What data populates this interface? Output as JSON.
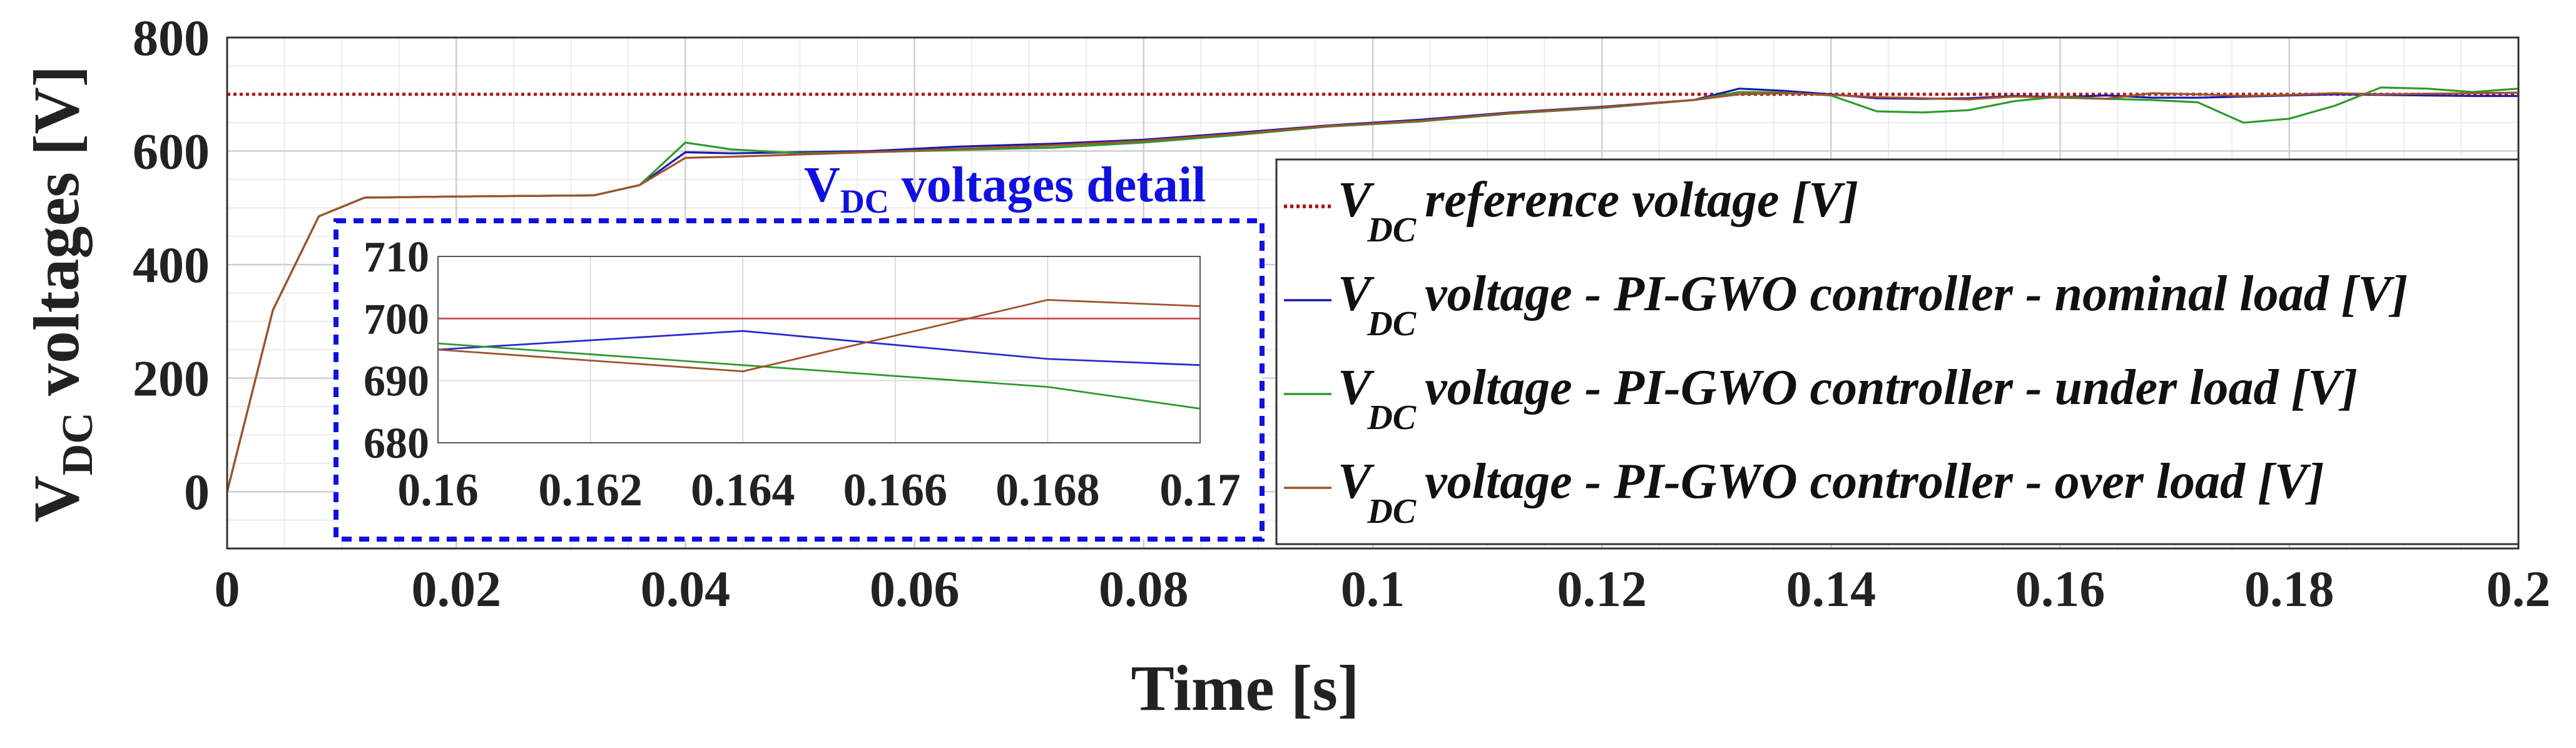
{
  "chart_data": [
    {
      "type": "line",
      "title": "",
      "xlabel": "Time [s]",
      "ylabel_main": "V",
      "ylabel_sub": "DC",
      "ylabel_rest": " voltages [V]",
      "xlim": [
        0,
        0.2
      ],
      "ylim": [
        -100,
        800
      ],
      "xticks": [
        0,
        0.02,
        0.04,
        0.06,
        0.08,
        0.1,
        0.12,
        0.14,
        0.16,
        0.18,
        0.2
      ],
      "xtick_labels": [
        "0",
        "0.02",
        "0.04",
        "0.06",
        "0.08",
        "0.1",
        "0.12",
        "0.14",
        "0.16",
        "0.18",
        "0.2"
      ],
      "yticks": [
        0,
        200,
        400,
        600,
        800
      ],
      "ytick_labels": [
        "0",
        "200",
        "400",
        "600",
        "800"
      ],
      "grid": true,
      "legend_position": "center-right",
      "series": [
        {
          "name": "V_DC reference voltage [V]",
          "legend_main": "V",
          "legend_sub": "DC",
          "legend_rest": "reference voltage [V]",
          "color": "#b01818",
          "dashed": true,
          "x": [
            0,
            0.2
          ],
          "y": [
            700,
            700
          ]
        },
        {
          "name": "V_DC voltage - PI-GWO controller - nominal load [V]",
          "legend_main": "V",
          "legend_sub": "DC",
          "legend_rest": "voltage - PI-GWO controller - nominal load  [V]",
          "color": "#1a1aa8",
          "dashed": false,
          "x": [
            0,
            0.004,
            0.008,
            0.012,
            0.02,
            0.032,
            0.036,
            0.04,
            0.044,
            0.05,
            0.056,
            0.064,
            0.072,
            0.08,
            0.088,
            0.096,
            0.104,
            0.112,
            0.12,
            0.128,
            0.132,
            0.136,
            0.14,
            0.144,
            0.148,
            0.152,
            0.156,
            0.16,
            0.164,
            0.168,
            0.172,
            0.176,
            0.18,
            0.184,
            0.188,
            0.192,
            0.196,
            0.2
          ],
          "y": [
            0,
            320,
            485,
            518,
            520,
            522,
            540,
            598,
            596,
            598,
            600,
            608,
            613,
            620,
            632,
            645,
            655,
            668,
            678,
            690,
            710,
            706,
            700,
            693,
            692,
            693,
            697,
            695,
            698,
            694,
            694,
            696,
            698,
            700,
            699,
            698,
            697,
            697
          ]
        },
        {
          "name": "V_DC voltage - PI-GWO controller - under load [V]",
          "legend_main": "V",
          "legend_sub": "DC",
          "legend_rest": "voltage - PI-GWO controller - under load  [V]",
          "color": "#2e9a2e",
          "dashed": false,
          "x": [
            0,
            0.004,
            0.008,
            0.012,
            0.02,
            0.032,
            0.036,
            0.04,
            0.044,
            0.05,
            0.056,
            0.064,
            0.072,
            0.08,
            0.088,
            0.096,
            0.104,
            0.112,
            0.12,
            0.128,
            0.132,
            0.136,
            0.14,
            0.144,
            0.148,
            0.152,
            0.156,
            0.16,
            0.164,
            0.168,
            0.172,
            0.176,
            0.18,
            0.184,
            0.188,
            0.192,
            0.196,
            0.2
          ],
          "y": [
            0,
            320,
            485,
            518,
            520,
            522,
            540,
            615,
            603,
            596,
            598,
            602,
            606,
            615,
            628,
            643,
            652,
            666,
            676,
            690,
            704,
            703,
            698,
            670,
            668,
            672,
            688,
            696,
            692,
            690,
            686,
            650,
            657,
            680,
            712,
            710,
            704,
            710
          ]
        },
        {
          "name": "V_DC voltage - PI-GWO controller - over load [V]",
          "legend_main": "V",
          "legend_sub": "DC",
          "legend_rest": "voltage - PI-GWO controller - over load  [V]",
          "color": "#a0522d",
          "dashed": false,
          "x": [
            0,
            0.004,
            0.008,
            0.012,
            0.02,
            0.032,
            0.036,
            0.04,
            0.044,
            0.05,
            0.056,
            0.064,
            0.072,
            0.08,
            0.088,
            0.096,
            0.104,
            0.112,
            0.12,
            0.128,
            0.132,
            0.136,
            0.14,
            0.144,
            0.148,
            0.152,
            0.156,
            0.16,
            0.164,
            0.168,
            0.172,
            0.176,
            0.18,
            0.184,
            0.188,
            0.192,
            0.196,
            0.2
          ],
          "y": [
            0,
            320,
            485,
            518,
            520,
            522,
            540,
            588,
            590,
            594,
            598,
            604,
            610,
            618,
            630,
            644,
            653,
            667,
            677,
            690,
            700,
            702,
            699,
            695,
            693,
            691,
            696,
            694,
            692,
            702,
            700,
            697,
            699,
            702,
            700,
            701,
            702,
            703
          ]
        }
      ]
    },
    {
      "type": "line",
      "title_main": "V",
      "title_sub": "DC",
      "title_rest": " voltages detail",
      "xlim": [
        0.16,
        0.17
      ],
      "ylim": [
        680,
        710
      ],
      "xticks": [
        0.16,
        0.162,
        0.164,
        0.166,
        0.168,
        0.17
      ],
      "xtick_labels": [
        "0.16",
        "0.162",
        "0.164",
        "0.166",
        "0.168",
        "0.17"
      ],
      "yticks": [
        680,
        690,
        700,
        710
      ],
      "ytick_labels": [
        "680",
        "690",
        "700",
        "710"
      ],
      "grid": true,
      "series": [
        {
          "name": "reference",
          "color": "#c85050",
          "x": [
            0.16,
            0.17
          ],
          "y": [
            700,
            700
          ]
        },
        {
          "name": "nominal load",
          "color": "#2a2ad0",
          "x": [
            0.16,
            0.164,
            0.168,
            0.17
          ],
          "y": [
            695,
            698,
            693.5,
            692.5
          ]
        },
        {
          "name": "under load",
          "color": "#2e9a2e",
          "x": [
            0.16,
            0.164,
            0.168,
            0.17
          ],
          "y": [
            696,
            692.5,
            689,
            685.5
          ]
        },
        {
          "name": "over load",
          "color": "#a0522d",
          "x": [
            0.16,
            0.164,
            0.168,
            0.17
          ],
          "y": [
            695,
            691.5,
            703,
            702
          ]
        }
      ]
    }
  ]
}
